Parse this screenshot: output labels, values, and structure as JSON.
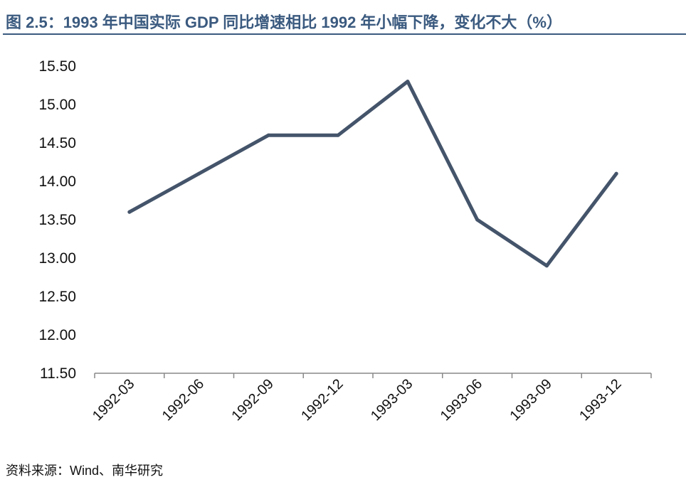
{
  "title": "图 2.5：1993 年中国实际 GDP 同比增速相比 1992 年小幅下降，变化不大（%）",
  "source": "资料来源：Wind、南华研究",
  "colors": {
    "title": "#3b5a7f",
    "line": "#44546a",
    "axis": "#888888",
    "text": "#111111"
  },
  "chart_data": {
    "type": "line",
    "title": "图 2.5：1993 年中国实际 GDP 同比增速相比 1992 年小幅下降，变化不大（%）",
    "xlabel": "",
    "ylabel": "",
    "categories": [
      "1992-03",
      "1992-06",
      "1992-09",
      "1992-12",
      "1993-03",
      "1993-06",
      "1993-09",
      "1993-12"
    ],
    "series": [
      {
        "values": [
          13.6,
          14.1,
          14.6,
          14.6,
          15.3,
          13.5,
          12.9,
          14.1
        ]
      }
    ],
    "ylim": [
      11.5,
      15.5
    ],
    "yticks": [
      "15.50",
      "15.00",
      "14.50",
      "14.00",
      "13.50",
      "13.00",
      "12.50",
      "12.00",
      "11.50"
    ],
    "grid": false,
    "legend": "none"
  }
}
